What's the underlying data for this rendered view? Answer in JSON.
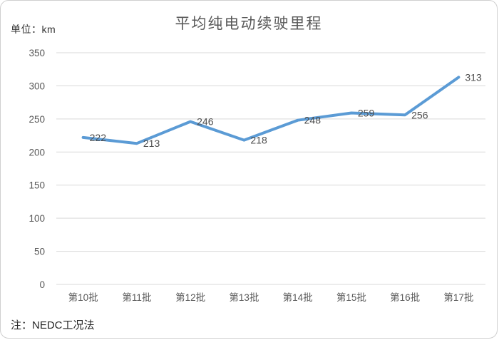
{
  "header": {
    "unit_label": "单位：km"
  },
  "chart_data": {
    "type": "line",
    "title": "平均纯电动续驶里程",
    "categories": [
      "第10批",
      "第11批",
      "第12批",
      "第13批",
      "第14批",
      "第15批",
      "第16批",
      "第17批"
    ],
    "series": [
      {
        "name": "平均纯电动续驶里程",
        "values": [
          222,
          213,
          246,
          218,
          248,
          259,
          256,
          313
        ]
      }
    ],
    "ylim": [
      0,
      350
    ],
    "yticks": [
      0,
      50,
      100,
      150,
      200,
      250,
      300,
      350
    ],
    "xlabel": "",
    "ylabel": "",
    "unit": "km",
    "grid": true,
    "legend_position": "none",
    "data_labels": true,
    "colors": {
      "line": "#5B9BD5",
      "gridline": "#D9D9D9",
      "axis_text": "#595959",
      "data_label_text": "#4d4d4d"
    }
  },
  "footer": {
    "note": "注：NEDC工况法"
  }
}
